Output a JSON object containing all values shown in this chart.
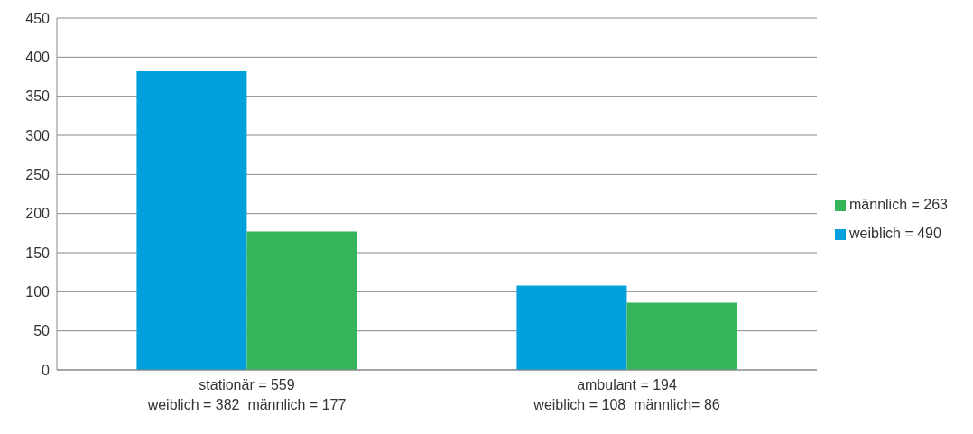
{
  "chart_data": {
    "type": "bar",
    "categories": [
      "stationär = 559\nweiblich = 382  männlich = 177",
      "ambulant = 194\nweiblich = 108  männlich= 86"
    ],
    "series": [
      {
        "name": "weiblich = 490",
        "color": "#00a0dc",
        "values": [
          382,
          108
        ]
      },
      {
        "name": "männlich = 263",
        "color": "#35b45a",
        "values": [
          177,
          86
        ]
      }
    ],
    "ylim": [
      0,
      450
    ],
    "yticks": [
      0,
      50,
      100,
      150,
      200,
      250,
      300,
      350,
      400,
      450
    ],
    "grid": "y",
    "legend": "right"
  }
}
